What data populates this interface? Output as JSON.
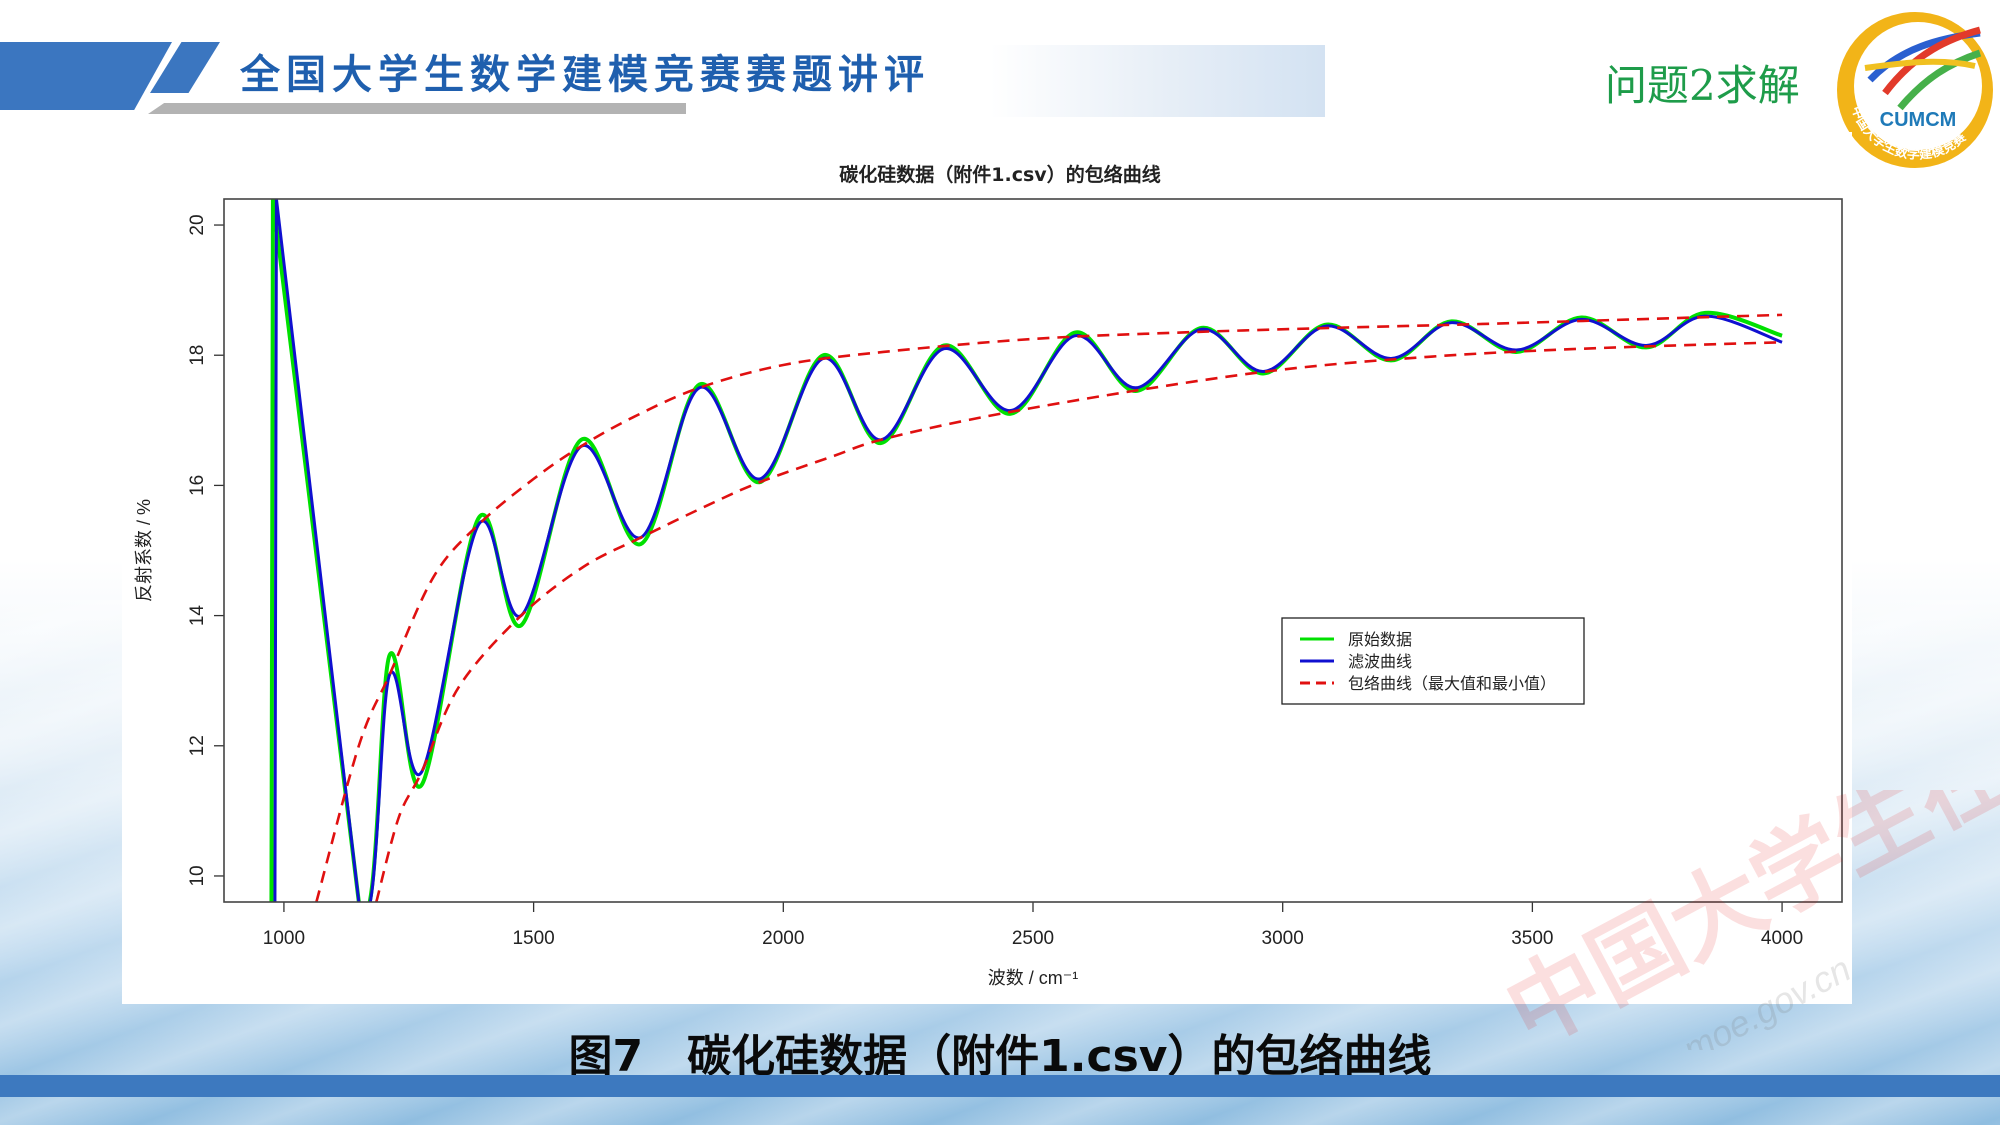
{
  "header": {
    "title": "全国大学生数学建模竞赛赛题讲评",
    "section": "问题2求解",
    "logo_text": "CUMCM",
    "logo_ring_text": "中国大学生数学建模竞赛"
  },
  "caption": "图7　碳化硅数据（附件1.csv）的包络曲线",
  "watermark": {
    "text": "中国大学生在线",
    "url_text": "dxs.moe.gov.cn"
  },
  "colors": {
    "raw": "#00e000",
    "filtered": "#1010d0",
    "envelope": "#e01010",
    "header_blue": "#3b76c0",
    "section_green": "#1e9c4a"
  },
  "chart_data": {
    "type": "line",
    "title": "碳化硅数据（附件1.csv）的包络曲线",
    "xlabel": "波数 / cm⁻¹",
    "ylabel": "反射系数 / %",
    "xlim": [
      880,
      4120
    ],
    "ylim": [
      9.6,
      20.4
    ],
    "xticks": [
      1000,
      1500,
      2000,
      2500,
      3000,
      3500,
      4000
    ],
    "yticks": [
      10,
      12,
      14,
      16,
      18,
      20
    ],
    "grid": false,
    "legend": {
      "position": "center-right",
      "entries": [
        {
          "label": "原始数据",
          "color": "#00e000",
          "style": "solid"
        },
        {
          "label": "滤波曲线",
          "color": "#1010d0",
          "style": "solid"
        },
        {
          "label": "包络曲线（最大值和最小值）",
          "color": "#e01010",
          "style": "dashed"
        }
      ]
    },
    "series": [
      {
        "name": "滤波曲线",
        "x": [
          982,
          985,
          1150,
          1212,
          1276,
          1390,
          1475,
          1595,
          1715,
          1832,
          1953,
          2080,
          2195,
          2322,
          2455,
          2585,
          2706,
          2838,
          2961,
          3088,
          3217,
          3338,
          3468,
          3598,
          3728,
          3846,
          4000
        ],
        "y": [
          9.6,
          20.4,
          9.6,
          13.1,
          11.6,
          15.4,
          14.0,
          16.6,
          15.2,
          17.5,
          16.1,
          17.95,
          16.7,
          18.1,
          17.15,
          18.3,
          17.5,
          18.4,
          17.75,
          18.45,
          17.95,
          18.5,
          18.08,
          18.55,
          18.15,
          18.6,
          18.2
        ]
      },
      {
        "name": "原始数据",
        "x": [
          975,
          978,
          1150,
          1212,
          1276,
          1390,
          1475,
          1595,
          1715,
          1832,
          1953,
          2080,
          2195,
          2322,
          2455,
          2585,
          2706,
          2838,
          2961,
          3088,
          3217,
          3338,
          3468,
          3598,
          3728,
          3846,
          4000
        ],
        "y": [
          9.6,
          20.4,
          9.6,
          13.4,
          11.4,
          15.5,
          13.85,
          16.7,
          15.1,
          17.55,
          16.05,
          18.0,
          16.65,
          18.15,
          17.1,
          18.35,
          17.45,
          18.42,
          17.72,
          18.47,
          17.92,
          18.52,
          18.05,
          18.58,
          18.12,
          18.65,
          18.3
        ]
      },
      {
        "name": "包络曲线（最大值）",
        "x": [
          1065,
          1150,
          1212,
          1300,
          1390,
          1500,
          1595,
          1700,
          1832,
          2000,
          2200,
          2500,
          2800,
          3100,
          3400,
          3700,
          4000
        ],
        "y": [
          9.6,
          12.0,
          13.1,
          14.6,
          15.4,
          16.1,
          16.6,
          17.05,
          17.5,
          17.85,
          18.05,
          18.25,
          18.35,
          18.42,
          18.48,
          18.55,
          18.62
        ]
      },
      {
        "name": "包络曲线（最小值）",
        "x": [
          1185,
          1230,
          1276,
          1350,
          1475,
          1600,
          1715,
          1850,
          1953,
          2100,
          2195,
          2400,
          2700,
          3000,
          3300,
          3600,
          4000
        ],
        "y": [
          9.6,
          10.9,
          11.6,
          12.9,
          14.0,
          14.75,
          15.2,
          15.7,
          16.05,
          16.45,
          16.7,
          17.05,
          17.45,
          17.78,
          17.98,
          18.1,
          18.2
        ]
      }
    ]
  }
}
